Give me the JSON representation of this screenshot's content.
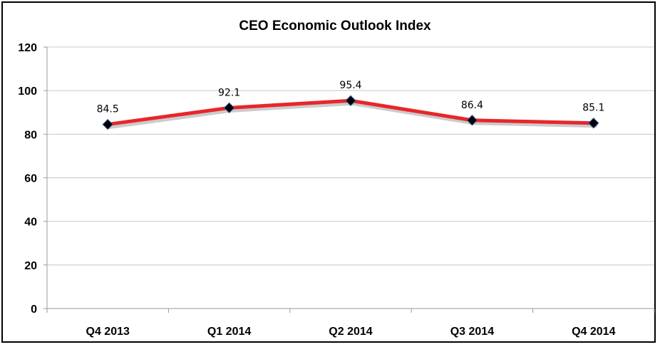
{
  "chart_data": {
    "type": "line",
    "title": "CEO Economic Outlook Index",
    "xlabel": "",
    "ylabel": "",
    "categories": [
      "Q4 2013",
      "Q1 2014",
      "Q2 2014",
      "Q3 2014",
      "Q4 2014"
    ],
    "series": [
      {
        "values": [
          84.5,
          92.1,
          95.4,
          86.4,
          85.1
        ],
        "color": "#e8262b"
      }
    ],
    "data_labels": [
      "84.5",
      "92.1",
      "95.4",
      "86.4",
      "85.1"
    ],
    "yticks": [
      "0",
      "20",
      "40",
      "60",
      "80",
      "100",
      "120"
    ],
    "ylim": [
      0,
      120
    ],
    "grid": true,
    "legend": "none",
    "marker": "diamond",
    "marker_color": "#000000"
  }
}
